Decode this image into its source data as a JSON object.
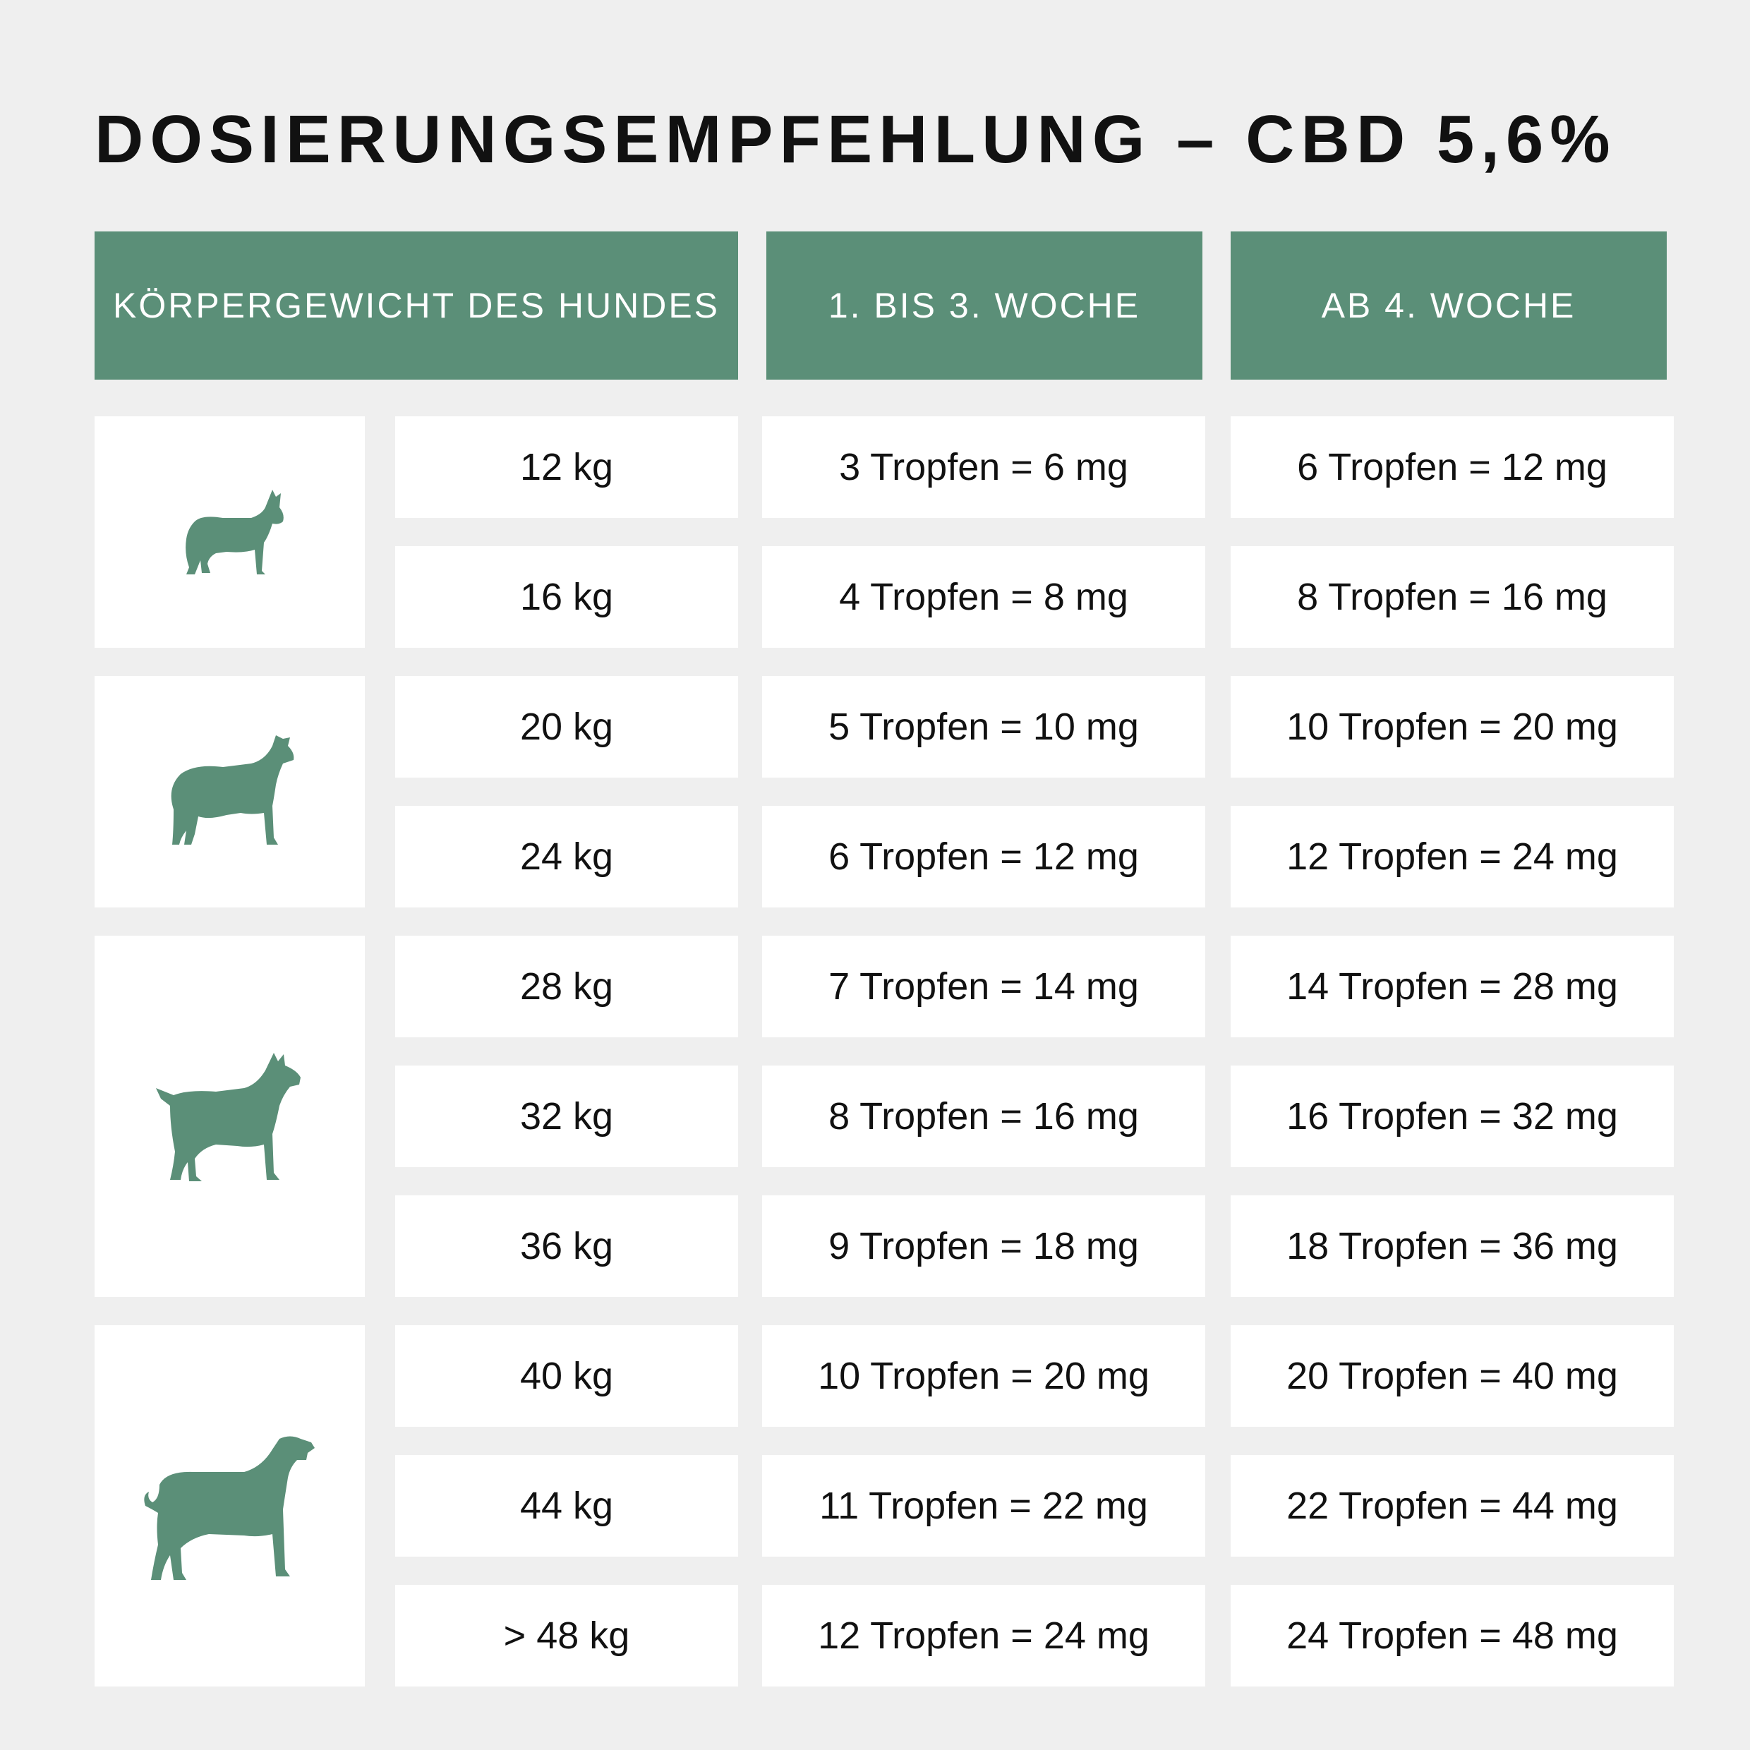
{
  "title": "DOSIERUNGSEMPFEHLUNG – CBD 5,6%",
  "headers": {
    "weight": "KÖRPERGEWICHT DES HUNDES",
    "weeks_1_3": "1. BIS 3. WOCHE",
    "from_week_4": "AB 4. WOCHE"
  },
  "icons": [
    "small-dog-icon",
    "medium-dog-icon",
    "large-dog-icon",
    "giant-dog-icon"
  ],
  "colors": {
    "accent": "#5b8f78",
    "background": "#efefef",
    "cell": "#ffffff"
  },
  "rows": [
    {
      "weight": "12 kg",
      "w1_3": "3 Tropfen = 6 mg",
      "w4": "6 Tropfen = 12 mg"
    },
    {
      "weight": "16 kg",
      "w1_3": "4 Tropfen = 8 mg",
      "w4": "8 Tropfen = 16 mg"
    },
    {
      "weight": "20 kg",
      "w1_3": "5 Tropfen = 10 mg",
      "w4": "10 Tropfen = 20 mg"
    },
    {
      "weight": "24 kg",
      "w1_3": "6 Tropfen = 12 mg",
      "w4": "12 Tropfen = 24 mg"
    },
    {
      "weight": "28 kg",
      "w1_3": "7 Tropfen = 14 mg",
      "w4": "14 Tropfen = 28 mg"
    },
    {
      "weight": "32 kg",
      "w1_3": "8 Tropfen = 16 mg",
      "w4": "16 Tropfen = 32 mg"
    },
    {
      "weight": "36 kg",
      "w1_3": "9 Tropfen = 18 mg",
      "w4": "18 Tropfen = 36 mg"
    },
    {
      "weight": "40 kg",
      "w1_3": "10 Tropfen = 20 mg",
      "w4": "20 Tropfen = 40 mg"
    },
    {
      "weight": "44 kg",
      "w1_3": "11 Tropfen = 22 mg",
      "w4": "22 Tropfen = 44 mg"
    },
    {
      "weight": "> 48 kg",
      "w1_3": "12 Tropfen = 24 mg",
      "w4": "24 Tropfen = 48 mg"
    }
  ]
}
